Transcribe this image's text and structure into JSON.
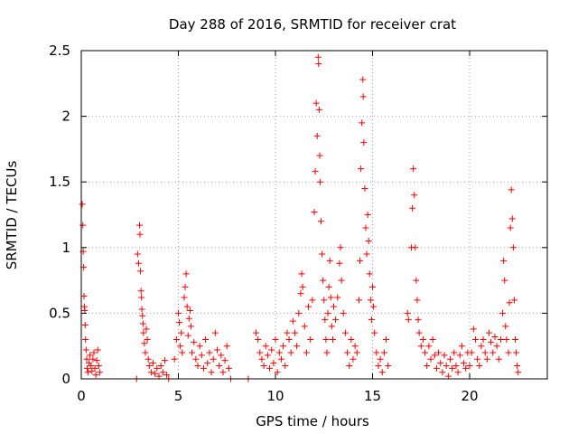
{
  "chart_data": {
    "type": "scatter",
    "title": "Day 288 of 2016, SRMTID for receiver crat",
    "xlabel": "GPS time / hours",
    "ylabel": "SRMTID / TECUs",
    "xlim": [
      0,
      24
    ],
    "ylim": [
      0,
      2.5
    ],
    "xticks": [
      0,
      5,
      10,
      15,
      20
    ],
    "yticks": [
      0,
      0.5,
      1,
      1.5,
      2,
      2.5
    ],
    "xtick_labels": [
      "0",
      "5",
      "10",
      "15",
      "20"
    ],
    "ytick_labels": [
      "0",
      "0.5",
      "1",
      "1.5",
      "2",
      "2.5"
    ],
    "grid": true,
    "marker": "+",
    "color": "#ff0000",
    "series": [
      {
        "name": "SRMTID",
        "points": [
          [
            0.05,
            1.33
          ],
          [
            0.08,
            1.17
          ],
          [
            0.1,
            0.97
          ],
          [
            0.12,
            0.85
          ],
          [
            0.14,
            0.63
          ],
          [
            0.16,
            0.55
          ],
          [
            0.18,
            0.52
          ],
          [
            0.2,
            0.41
          ],
          [
            0.22,
            0.3
          ],
          [
            0.25,
            0.22
          ],
          [
            0.28,
            0.15
          ],
          [
            0.3,
            0.08
          ],
          [
            0.35,
            0.05
          ],
          [
            0.4,
            0.12
          ],
          [
            0.45,
            0.18
          ],
          [
            0.5,
            0.1
          ],
          [
            0.55,
            0.06
          ],
          [
            0.6,
            0.15
          ],
          [
            0.65,
            0.2
          ],
          [
            0.7,
            0.08
          ],
          [
            0.75,
            0.03
          ],
          [
            0.8,
            0.14
          ],
          [
            0.85,
            0.22
          ],
          [
            0.9,
            0.1
          ],
          [
            0.95,
            0.05
          ],
          [
            2.85,
            0.0
          ],
          [
            2.9,
            0.95
          ],
          [
            2.95,
            0.88
          ],
          [
            3.0,
            1.17
          ],
          [
            3.02,
            1.1
          ],
          [
            3.05,
            0.82
          ],
          [
            3.08,
            0.67
          ],
          [
            3.1,
            0.62
          ],
          [
            3.12,
            0.53
          ],
          [
            3.15,
            0.48
          ],
          [
            3.18,
            0.42
          ],
          [
            3.2,
            0.35
          ],
          [
            3.25,
            0.27
          ],
          [
            3.3,
            0.2
          ],
          [
            3.35,
            0.38
          ],
          [
            3.4,
            0.3
          ],
          [
            3.45,
            0.15
          ],
          [
            3.5,
            0.1
          ],
          [
            3.6,
            0.05
          ],
          [
            3.7,
            0.12
          ],
          [
            3.8,
            0.04
          ],
          [
            3.9,
            0.08
          ],
          [
            4.0,
            0.02
          ],
          [
            4.1,
            0.1
          ],
          [
            4.2,
            0.05
          ],
          [
            4.3,
            0.14
          ],
          [
            4.4,
            0.03
          ],
          [
            4.5,
            0.0
          ],
          [
            4.8,
            0.15
          ],
          [
            4.9,
            0.3
          ],
          [
            5.0,
            0.5
          ],
          [
            5.05,
            0.43
          ],
          [
            5.1,
            0.25
          ],
          [
            5.15,
            0.35
          ],
          [
            5.2,
            0.2
          ],
          [
            5.3,
            0.62
          ],
          [
            5.35,
            0.7
          ],
          [
            5.4,
            0.8
          ],
          [
            5.45,
            0.55
          ],
          [
            5.5,
            0.33
          ],
          [
            5.55,
            0.46
          ],
          [
            5.6,
            0.52
          ],
          [
            5.65,
            0.4
          ],
          [
            5.7,
            0.2
          ],
          [
            5.8,
            0.28
          ],
          [
            5.9,
            0.15
          ],
          [
            6.0,
            0.1
          ],
          [
            6.1,
            0.25
          ],
          [
            6.2,
            0.18
          ],
          [
            6.3,
            0.08
          ],
          [
            6.4,
            0.3
          ],
          [
            6.5,
            0.12
          ],
          [
            6.6,
            0.2
          ],
          [
            6.7,
            0.05
          ],
          [
            6.8,
            0.15
          ],
          [
            6.9,
            0.35
          ],
          [
            7.0,
            0.22
          ],
          [
            7.1,
            0.1
          ],
          [
            7.2,
            0.18
          ],
          [
            7.3,
            0.05
          ],
          [
            7.4,
            0.14
          ],
          [
            7.5,
            0.25
          ],
          [
            7.6,
            0.08
          ],
          [
            7.7,
            0.0
          ],
          [
            8.6,
            0.0
          ],
          [
            9.0,
            0.35
          ],
          [
            9.1,
            0.3
          ],
          [
            9.2,
            0.2
          ],
          [
            9.3,
            0.15
          ],
          [
            9.4,
            0.1
          ],
          [
            9.5,
            0.25
          ],
          [
            9.6,
            0.18
          ],
          [
            9.7,
            0.08
          ],
          [
            9.8,
            0.22
          ],
          [
            9.9,
            0.12
          ],
          [
            10.0,
            0.3
          ],
          [
            10.1,
            0.05
          ],
          [
            10.2,
            0.2
          ],
          [
            10.3,
            0.15
          ],
          [
            10.4,
            0.25
          ],
          [
            10.5,
            0.1
          ],
          [
            10.6,
            0.35
          ],
          [
            10.7,
            0.3
          ],
          [
            10.8,
            0.2
          ],
          [
            10.9,
            0.44
          ],
          [
            11.0,
            0.35
          ],
          [
            11.1,
            0.25
          ],
          [
            11.2,
            0.5
          ],
          [
            11.3,
            0.65
          ],
          [
            11.35,
            0.8
          ],
          [
            11.4,
            0.7
          ],
          [
            11.5,
            0.4
          ],
          [
            11.6,
            0.2
          ],
          [
            11.7,
            0.55
          ],
          [
            11.8,
            0.3
          ],
          [
            11.9,
            0.6
          ],
          [
            12.0,
            1.27
          ],
          [
            12.05,
            1.58
          ],
          [
            12.1,
            2.1
          ],
          [
            12.15,
            1.85
          ],
          [
            12.2,
            2.45
          ],
          [
            12.22,
            2.4
          ],
          [
            12.25,
            2.05
          ],
          [
            12.28,
            1.7
          ],
          [
            12.3,
            1.5
          ],
          [
            12.35,
            1.2
          ],
          [
            12.4,
            0.95
          ],
          [
            12.45,
            0.75
          ],
          [
            12.5,
            0.6
          ],
          [
            12.55,
            0.45
          ],
          [
            12.6,
            0.3
          ],
          [
            12.65,
            0.2
          ],
          [
            12.7,
            0.5
          ],
          [
            12.75,
            0.7
          ],
          [
            12.8,
            0.9
          ],
          [
            12.85,
            0.62
          ],
          [
            12.9,
            0.4
          ],
          [
            12.95,
            0.3
          ],
          [
            13.0,
            0.55
          ],
          [
            13.1,
            0.45
          ],
          [
            13.2,
            0.62
          ],
          [
            13.3,
            0.88
          ],
          [
            13.35,
            1.0
          ],
          [
            13.4,
            0.75
          ],
          [
            13.5,
            0.5
          ],
          [
            13.6,
            0.35
          ],
          [
            13.7,
            0.2
          ],
          [
            13.8,
            0.1
          ],
          [
            13.9,
            0.3
          ],
          [
            14.0,
            0.15
          ],
          [
            14.1,
            0.25
          ],
          [
            14.2,
            0.2
          ],
          [
            14.3,
            0.6
          ],
          [
            14.35,
            0.9
          ],
          [
            14.4,
            1.6
          ],
          [
            14.45,
            1.95
          ],
          [
            14.5,
            2.28
          ],
          [
            14.52,
            2.15
          ],
          [
            14.55,
            1.8
          ],
          [
            14.6,
            1.45
          ],
          [
            14.65,
            1.15
          ],
          [
            14.7,
            0.95
          ],
          [
            14.75,
            1.25
          ],
          [
            14.8,
            1.05
          ],
          [
            14.85,
            0.8
          ],
          [
            14.9,
            0.6
          ],
          [
            14.95,
            0.45
          ],
          [
            15.0,
            0.7
          ],
          [
            15.05,
            0.55
          ],
          [
            15.1,
            0.35
          ],
          [
            15.2,
            0.2
          ],
          [
            15.3,
            0.1
          ],
          [
            15.4,
            0.15
          ],
          [
            15.5,
            0.05
          ],
          [
            15.6,
            0.2
          ],
          [
            15.7,
            0.3
          ],
          [
            15.8,
            0.1
          ],
          [
            16.8,
            0.5
          ],
          [
            16.85,
            0.45
          ],
          [
            17.0,
            1.0
          ],
          [
            17.05,
            1.3
          ],
          [
            17.1,
            1.6
          ],
          [
            17.15,
            1.4
          ],
          [
            17.2,
            1.0
          ],
          [
            17.25,
            0.75
          ],
          [
            17.3,
            0.6
          ],
          [
            17.35,
            0.45
          ],
          [
            17.4,
            0.35
          ],
          [
            17.5,
            0.25
          ],
          [
            17.6,
            0.3
          ],
          [
            17.7,
            0.2
          ],
          [
            17.8,
            0.1
          ],
          [
            17.9,
            0.25
          ],
          [
            18.0,
            0.15
          ],
          [
            18.1,
            0.3
          ],
          [
            18.2,
            0.18
          ],
          [
            18.3,
            0.08
          ],
          [
            18.4,
            0.2
          ],
          [
            18.5,
            0.12
          ],
          [
            18.6,
            0.05
          ],
          [
            18.7,
            0.18
          ],
          [
            18.8,
            0.1
          ],
          [
            18.9,
            0.02
          ],
          [
            19.0,
            0.15
          ],
          [
            19.1,
            0.08
          ],
          [
            19.2,
            0.2
          ],
          [
            19.3,
            0.1
          ],
          [
            19.4,
            0.05
          ],
          [
            19.5,
            0.18
          ],
          [
            19.6,
            0.25
          ],
          [
            19.7,
            0.12
          ],
          [
            19.8,
            0.08
          ],
          [
            19.9,
            0.2
          ],
          [
            20.0,
            0.1
          ],
          [
            20.1,
            0.2
          ],
          [
            20.2,
            0.38
          ],
          [
            20.3,
            0.3
          ],
          [
            20.4,
            0.15
          ],
          [
            20.5,
            0.1
          ],
          [
            20.6,
            0.25
          ],
          [
            20.7,
            0.3
          ],
          [
            20.8,
            0.2
          ],
          [
            20.9,
            0.15
          ],
          [
            21.0,
            0.35
          ],
          [
            21.1,
            0.28
          ],
          [
            21.2,
            0.2
          ],
          [
            21.3,
            0.32
          ],
          [
            21.4,
            0.25
          ],
          [
            21.5,
            0.15
          ],
          [
            21.6,
            0.3
          ],
          [
            21.7,
            0.5
          ],
          [
            21.75,
            0.9
          ],
          [
            21.8,
            0.75
          ],
          [
            21.85,
            0.4
          ],
          [
            21.9,
            0.3
          ],
          [
            22.0,
            0.2
          ],
          [
            22.05,
            0.58
          ],
          [
            22.1,
            1.15
          ],
          [
            22.15,
            1.44
          ],
          [
            22.2,
            1.22
          ],
          [
            22.25,
            1.0
          ],
          [
            22.3,
            0.6
          ],
          [
            22.35,
            0.3
          ],
          [
            22.4,
            0.2
          ],
          [
            22.45,
            0.1
          ],
          [
            22.5,
            0.05
          ]
        ]
      }
    ]
  }
}
